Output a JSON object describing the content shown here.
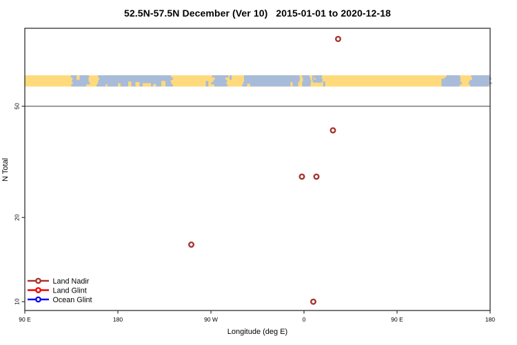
{
  "title": "52.5N-57.5N December (Ver 10)   2015-01-01 to 2020-12-18",
  "axes": {
    "x_label": "Longitude (deg E)",
    "y_label": "N Total"
  },
  "colors": {
    "land_nadir": "#A5352E",
    "land_glint": "#F40000",
    "ocean_glint": "#0A0AEE",
    "map_land": "#FFDA7C",
    "map_ocean": "#A8BBD9",
    "axis": "#2E2E2E",
    "reference_line": "#3A3A3A",
    "background": "#FFFFFF"
  },
  "legend": {
    "items": [
      {
        "label": "Land Nadir",
        "color": "#A5352E"
      },
      {
        "label": "Land Glint",
        "color": "#F40000"
      },
      {
        "label": "Ocean Glint",
        "color": "#0A0AEE"
      }
    ]
  },
  "chart_data": {
    "type": "scatter",
    "title": "52.5N-57.5N December (Ver 10)   2015-01-01 to 2020-12-18",
    "xlabel": "Longitude (deg E)",
    "ylabel": "N Total",
    "grid": false,
    "legend_position": "bottom-left inside",
    "x_axis": {
      "note": "continuous degrees east starting at 90E, wrapping past 180 through 90W and 0 back to 180",
      "range": [
        90,
        540
      ],
      "ticks": [
        {
          "deg_east": 90,
          "label": "90 E"
        },
        {
          "deg_east": 180,
          "label": "180"
        },
        {
          "deg_east": 270,
          "label": "90 W"
        },
        {
          "deg_east": 360,
          "label": "0"
        },
        {
          "deg_east": 450,
          "label": "90 E"
        },
        {
          "deg_east": 540,
          "label": "180"
        }
      ]
    },
    "y_axis": {
      "scale": "log10",
      "range": [
        9.3,
        95
      ],
      "ticks": [
        {
          "value": 50,
          "label": "50"
        },
        {
          "value": 20,
          "label": "20"
        },
        {
          "value": 10,
          "label": "10"
        }
      ]
    },
    "reference_line": {
      "n_total": 50
    },
    "series": [
      {
        "name": "Land Nadir",
        "color": "#A5352E",
        "marker": "open-circle",
        "points": [
          {
            "longitude_label": "109 W",
            "deg_east": 251,
            "n_total": 16
          },
          {
            "longitude_label": "2 W",
            "deg_east": 358,
            "n_total": 28
          },
          {
            "longitude_label": "12 E",
            "deg_east": 372,
            "n_total": 28
          },
          {
            "longitude_label": "9 E",
            "deg_east": 369,
            "n_total": 10
          },
          {
            "longitude_label": "28 E",
            "deg_east": 388,
            "n_total": 41
          },
          {
            "longitude_label": "33 E",
            "deg_east": 393,
            "n_total": 87
          }
        ]
      },
      {
        "name": "Land Glint",
        "color": "#F40000",
        "marker": "open-circle",
        "points": []
      },
      {
        "name": "Ocean Glint",
        "color": "#0A0AEE",
        "marker": "open-circle",
        "points": []
      }
    ],
    "map_band": {
      "description": "land/ocean strip for latitude band 52.5N-57.5N drawn across the plot",
      "n_range": [
        58.8,
        64.5
      ],
      "land_color": "#FFDA7C",
      "ocean_color": "#A8BBD9",
      "ocean_segments": [
        {
          "from": 136,
          "to": 151
        },
        {
          "from": 161,
          "to": 232
        },
        {
          "from": 272,
          "to": 285
        },
        {
          "from": 301,
          "to": 356
        },
        {
          "from": 359,
          "to": 366
        },
        {
          "from": 370,
          "to": 377,
          "top": 0,
          "bottom": 0.65
        },
        {
          "from": 496,
          "to": 511
        },
        {
          "from": 521,
          "to": 540
        }
      ],
      "land_speckles": [
        {
          "lon": 140,
          "w": 3,
          "top": 0,
          "bottom": 0.4
        },
        {
          "lon": 168,
          "w": 2,
          "top": 0.8,
          "bottom": 1
        },
        {
          "lon": 180,
          "w": 2.5,
          "top": 0.7,
          "bottom": 1
        },
        {
          "lon": 190,
          "w": 3,
          "top": 0.55,
          "bottom": 1
        },
        {
          "lon": 197,
          "w": 4,
          "top": 0.6,
          "bottom": 1
        },
        {
          "lon": 204,
          "w": 8,
          "top": 0.7,
          "bottom": 1
        },
        {
          "lon": 214,
          "w": 3,
          "top": 0.78,
          "bottom": 1
        },
        {
          "lon": 222,
          "w": 4,
          "top": 0.5,
          "bottom": 1
        },
        {
          "lon": 305,
          "w": 3,
          "top": 0.75,
          "bottom": 1
        },
        {
          "lon": 347,
          "w": 2,
          "top": 0.6,
          "bottom": 1
        }
      ],
      "ocean_speckles": [
        {
          "lon": 265,
          "w": 2.5,
          "top": 0.5,
          "bottom": 1
        },
        {
          "lon": 288,
          "w": 2,
          "top": 0,
          "bottom": 0.4
        },
        {
          "lon": 368,
          "w": 1.5,
          "top": 0,
          "bottom": 0.5
        },
        {
          "lon": 378.5,
          "w": 2,
          "top": 0.55,
          "bottom": 1
        },
        {
          "lon": 493,
          "w": 2.5,
          "top": 0.3,
          "bottom": 1
        }
      ]
    }
  }
}
